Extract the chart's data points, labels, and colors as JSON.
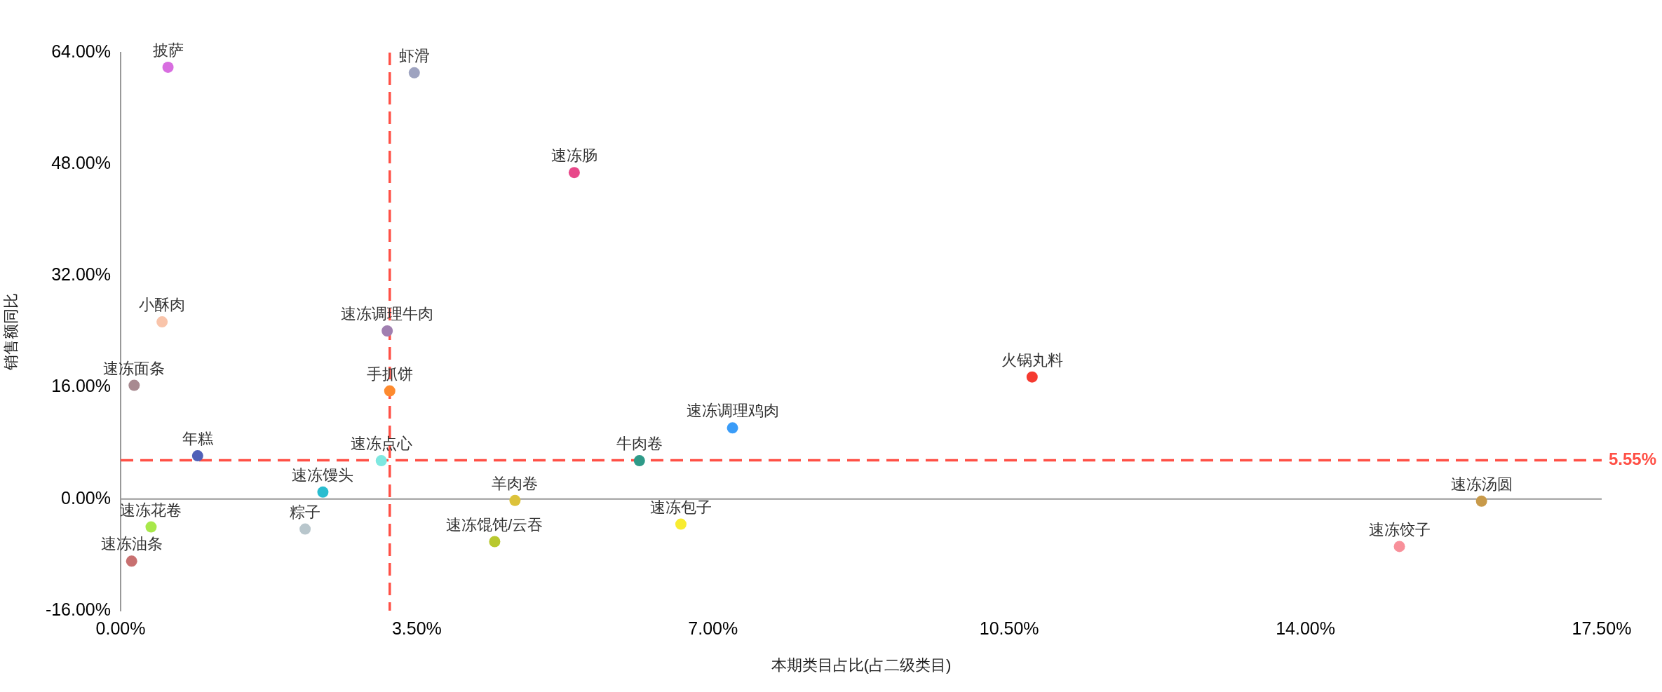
{
  "chart_data": {
    "type": "scatter",
    "xlabel": "本期类目占比(占二级类目)",
    "ylabel": "销售额同比",
    "xlim": [
      0,
      17.5
    ],
    "xticks": [
      {
        "value": 0,
        "label": "0.00%"
      },
      {
        "value": 3.5,
        "label": "3.50%"
      },
      {
        "value": 7,
        "label": "7.00%"
      },
      {
        "value": 10.5,
        "label": "10.50%"
      },
      {
        "value": 14,
        "label": "14.00%"
      },
      {
        "value": 17.5,
        "label": "17.50%"
      }
    ],
    "ylim": [
      -16,
      64
    ],
    "yticks": [
      {
        "value": -16,
        "label": "-16.00%"
      },
      {
        "value": 0,
        "label": "0.00%"
      },
      {
        "value": 16,
        "label": "16.00%"
      },
      {
        "value": 32,
        "label": "32.00%"
      },
      {
        "value": 48,
        "label": "48.00%"
      },
      {
        "value": 64,
        "label": "64.00%"
      }
    ],
    "grid": false,
    "legend": false,
    "marker": "circle",
    "ref_lines": [
      {
        "axis": "y",
        "value": 0,
        "color": "#999999",
        "line_style": "solid"
      },
      {
        "axis": "y",
        "value": 5.55,
        "label": "5.55%",
        "color": "#ff5046",
        "line_style": "dashed"
      },
      {
        "axis": "x",
        "value": 3.18,
        "color": "#ff5046",
        "line_style": "dashed"
      }
    ],
    "series": [
      {
        "name": "披萨",
        "color": "#d86ee0",
        "x": [
          0.56
        ],
        "values": [
          61.9
        ]
      },
      {
        "name": "虾滑",
        "color": "#9ea3c0",
        "x": [
          3.47
        ],
        "values": [
          61.1
        ]
      },
      {
        "name": "速冻肠",
        "color": "#e8488a",
        "x": [
          5.36
        ],
        "values": [
          46.8
        ]
      },
      {
        "name": "小酥肉",
        "color": "#f9c4aa",
        "x": [
          0.49
        ],
        "values": [
          25.4
        ]
      },
      {
        "name": "速冻调理牛肉",
        "color": "#a07fb0",
        "x": [
          3.15
        ],
        "values": [
          24.1
        ]
      },
      {
        "name": "速冻面条",
        "color": "#a88a90",
        "x": [
          0.16
        ],
        "values": [
          16.3
        ]
      },
      {
        "name": "手抓饼",
        "color": "#fd8a2e",
        "x": [
          3.18
        ],
        "values": [
          15.5
        ]
      },
      {
        "name": "火锅丸料",
        "color": "#f53a30",
        "x": [
          10.77
        ],
        "values": [
          17.5
        ]
      },
      {
        "name": "速冻调理鸡肉",
        "color": "#3a9cf8",
        "x": [
          7.23
        ],
        "values": [
          10.2
        ]
      },
      {
        "name": "年糕",
        "color": "#5060b8",
        "x": [
          0.91
        ],
        "values": [
          6.2
        ]
      },
      {
        "name": "速冻点心",
        "color": "#7ee8e0",
        "x": [
          3.08
        ],
        "values": [
          5.5
        ]
      },
      {
        "name": "牛肉卷",
        "color": "#2e9a88",
        "x": [
          6.13
        ],
        "values": [
          5.5
        ]
      },
      {
        "name": "速冻馒头",
        "color": "#29bdd0",
        "x": [
          2.39
        ],
        "values": [
          1.0
        ]
      },
      {
        "name": "羊肉卷",
        "color": "#dcc23a",
        "x": [
          4.66
        ],
        "values": [
          -0.2
        ]
      },
      {
        "name": "速冻汤圆",
        "color": "#c89a4a",
        "x": [
          16.08
        ],
        "values": [
          -0.3
        ]
      },
      {
        "name": "速冻包子",
        "color": "#f8ec30",
        "x": [
          6.62
        ],
        "values": [
          -3.6
        ]
      },
      {
        "name": "速冻花卷",
        "color": "#a8e84a",
        "x": [
          0.36
        ],
        "values": [
          -4.0
        ]
      },
      {
        "name": "粽子",
        "color": "#b8c6cc",
        "x": [
          2.18
        ],
        "values": [
          -4.3
        ]
      },
      {
        "name": "速冻馄饨/云吞",
        "color": "#b8c82e",
        "x": [
          4.42
        ],
        "values": [
          -6.1
        ]
      },
      {
        "name": "速冻饺子",
        "color": "#f8909a",
        "x": [
          15.11
        ],
        "values": [
          -6.8
        ]
      },
      {
        "name": "速冻油条",
        "color": "#c87070",
        "x": [
          0.13
        ],
        "values": [
          -8.9
        ]
      }
    ]
  }
}
